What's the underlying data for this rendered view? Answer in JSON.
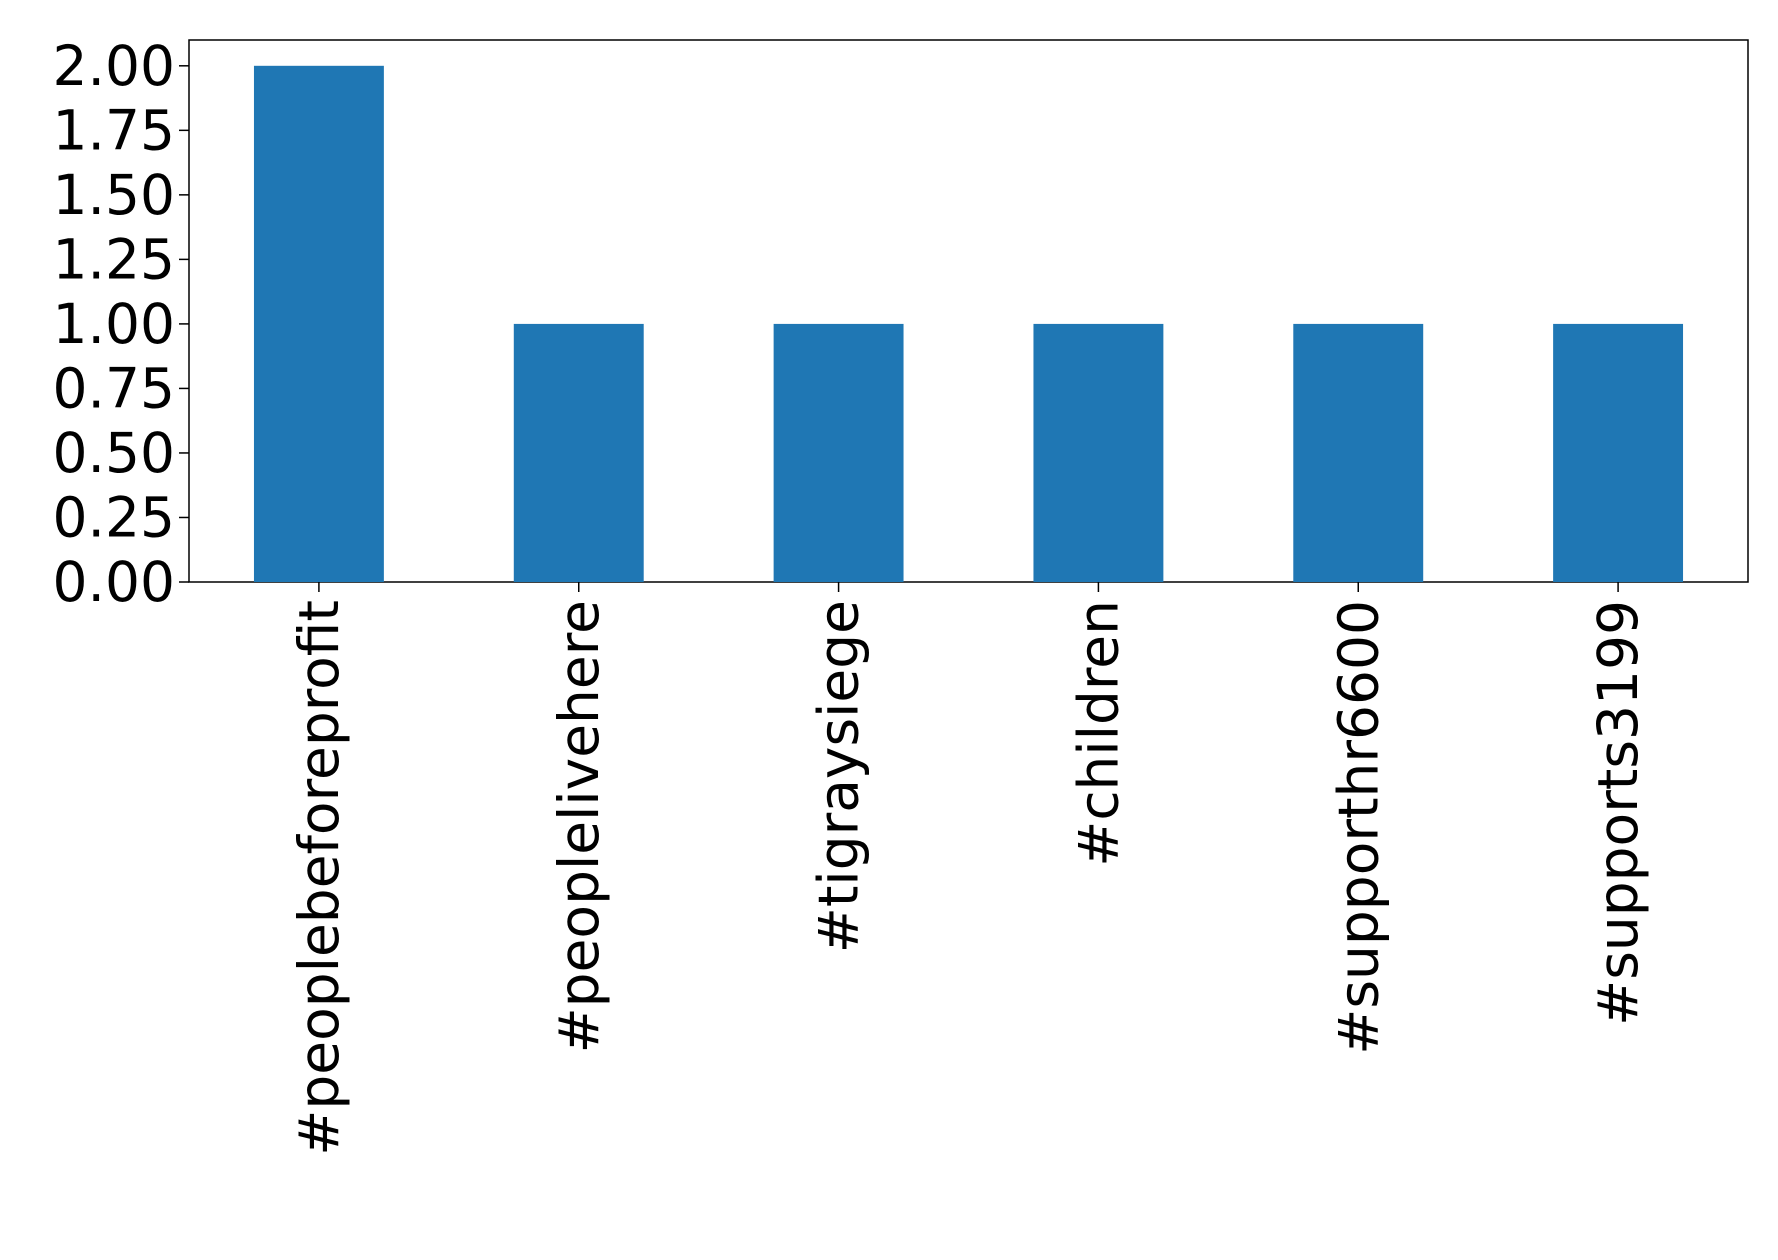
{
  "chart_data": {
    "type": "bar",
    "categories": [
      "#peoplebeforeprofit",
      "#peoplelivehere",
      "#tigraysiege",
      "#children",
      "#supporthr6600",
      "#supports3199"
    ],
    "values": [
      2,
      1,
      1,
      1,
      1,
      1
    ],
    "color": "#1f77b4",
    "ylim": [
      0,
      2.1
    ],
    "yticks": [
      {
        "value": 0,
        "label": "0.00"
      },
      {
        "value": 0.25,
        "label": "0.25"
      },
      {
        "value": 0.5,
        "label": "0.50"
      },
      {
        "value": 0.75,
        "label": "0.75"
      },
      {
        "value": 1,
        "label": "1.00"
      },
      {
        "value": 1.25,
        "label": "1.25"
      },
      {
        "value": 1.5,
        "label": "1.50"
      },
      {
        "value": 1.75,
        "label": "1.75"
      },
      {
        "value": 2,
        "label": "2.00"
      }
    ],
    "grid": false
  }
}
